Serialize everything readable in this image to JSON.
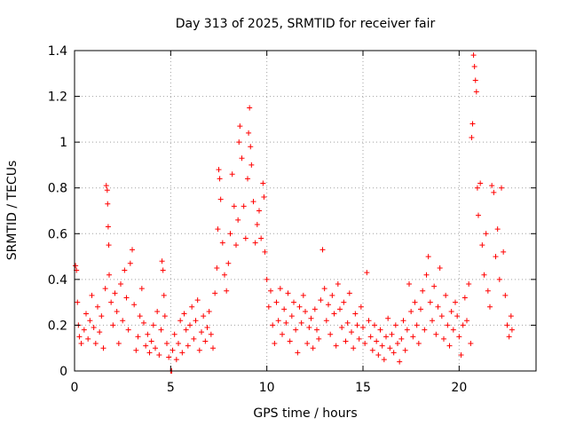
{
  "chart_data": {
    "type": "scatter",
    "title": "Day 313 of 2025, SRMTID for receiver fair",
    "xlabel": "GPS time / hours",
    "ylabel": "SRMTID / TECUs",
    "xlim": [
      0,
      24
    ],
    "ylim": [
      0,
      1.4
    ],
    "xticks": [
      0,
      5,
      10,
      15,
      20
    ],
    "xtick_labels": [
      "0",
      "5",
      "10",
      "15",
      "20"
    ],
    "yticks": [
      0,
      0.2,
      0.4,
      0.6,
      0.8,
      1,
      1.2,
      1.4
    ],
    "ytick_labels": [
      "0",
      "0.2",
      "0.4",
      "0.6",
      "0.8",
      "1",
      "1.2",
      "1.4"
    ],
    "grid": true,
    "marker": "+",
    "colors": {
      "points": "#ff0000",
      "grid": "#a0a0a0",
      "axes": "#000000"
    },
    "series": [
      {
        "name": "SRMTID",
        "points": [
          [
            0.05,
            0.46
          ],
          [
            0.1,
            0.44
          ],
          [
            0.15,
            0.3
          ],
          [
            0.2,
            0.2
          ],
          [
            0.25,
            0.15
          ],
          [
            0.35,
            0.12
          ],
          [
            0.5,
            0.18
          ],
          [
            0.6,
            0.25
          ],
          [
            0.7,
            0.14
          ],
          [
            0.8,
            0.22
          ],
          [
            0.9,
            0.33
          ],
          [
            1.0,
            0.19
          ],
          [
            1.1,
            0.12
          ],
          [
            1.2,
            0.28
          ],
          [
            1.3,
            0.17
          ],
          [
            1.4,
            0.24
          ],
          [
            1.5,
            0.1
          ],
          [
            1.6,
            0.36
          ],
          [
            1.65,
            0.81
          ],
          [
            1.7,
            0.79
          ],
          [
            1.72,
            0.73
          ],
          [
            1.75,
            0.63
          ],
          [
            1.78,
            0.55
          ],
          [
            1.8,
            0.42
          ],
          [
            1.9,
            0.3
          ],
          [
            2.0,
            0.2
          ],
          [
            2.1,
            0.34
          ],
          [
            2.2,
            0.26
          ],
          [
            2.3,
            0.12
          ],
          [
            2.4,
            0.38
          ],
          [
            2.5,
            0.22
          ],
          [
            2.6,
            0.44
          ],
          [
            2.7,
            0.32
          ],
          [
            2.8,
            0.18
          ],
          [
            2.9,
            0.47
          ],
          [
            3.0,
            0.53
          ],
          [
            3.1,
            0.29
          ],
          [
            3.2,
            0.09
          ],
          [
            3.3,
            0.15
          ],
          [
            3.4,
            0.24
          ],
          [
            3.5,
            0.36
          ],
          [
            3.6,
            0.21
          ],
          [
            3.7,
            0.11
          ],
          [
            3.8,
            0.16
          ],
          [
            3.9,
            0.08
          ],
          [
            4.0,
            0.13
          ],
          [
            4.1,
            0.2
          ],
          [
            4.2,
            0.1
          ],
          [
            4.3,
            0.26
          ],
          [
            4.4,
            0.07
          ],
          [
            4.5,
            0.18
          ],
          [
            4.55,
            0.48
          ],
          [
            4.6,
            0.44
          ],
          [
            4.65,
            0.33
          ],
          [
            4.7,
            0.24
          ],
          [
            4.8,
            0.12
          ],
          [
            4.9,
            0.06
          ],
          [
            5.0,
            0.0
          ],
          [
            5.05,
            0.0
          ],
          [
            5.1,
            0.09
          ],
          [
            5.2,
            0.16
          ],
          [
            5.3,
            0.05
          ],
          [
            5.4,
            0.12
          ],
          [
            5.5,
            0.22
          ],
          [
            5.6,
            0.08
          ],
          [
            5.7,
            0.25
          ],
          [
            5.8,
            0.18
          ],
          [
            5.9,
            0.11
          ],
          [
            6.0,
            0.2
          ],
          [
            6.1,
            0.28
          ],
          [
            6.2,
            0.14
          ],
          [
            6.3,
            0.22
          ],
          [
            6.4,
            0.31
          ],
          [
            6.5,
            0.09
          ],
          [
            6.6,
            0.17
          ],
          [
            6.7,
            0.24
          ],
          [
            6.8,
            0.13
          ],
          [
            6.9,
            0.19
          ],
          [
            7.0,
            0.26
          ],
          [
            7.1,
            0.16
          ],
          [
            7.2,
            0.1
          ],
          [
            7.3,
            0.34
          ],
          [
            7.4,
            0.45
          ],
          [
            7.45,
            0.62
          ],
          [
            7.5,
            0.88
          ],
          [
            7.55,
            0.84
          ],
          [
            7.6,
            0.75
          ],
          [
            7.7,
            0.56
          ],
          [
            7.8,
            0.42
          ],
          [
            7.9,
            0.35
          ],
          [
            8.0,
            0.47
          ],
          [
            8.1,
            0.6
          ],
          [
            8.2,
            0.86
          ],
          [
            8.3,
            0.72
          ],
          [
            8.4,
            0.55
          ],
          [
            8.5,
            0.66
          ],
          [
            8.55,
            1.0
          ],
          [
            8.6,
            1.07
          ],
          [
            8.7,
            0.93
          ],
          [
            8.8,
            0.72
          ],
          [
            8.9,
            0.58
          ],
          [
            9.0,
            0.84
          ],
          [
            9.05,
            1.04
          ],
          [
            9.1,
            1.15
          ],
          [
            9.15,
            0.98
          ],
          [
            9.2,
            0.9
          ],
          [
            9.3,
            0.74
          ],
          [
            9.4,
            0.56
          ],
          [
            9.5,
            0.64
          ],
          [
            9.6,
            0.7
          ],
          [
            9.7,
            0.58
          ],
          [
            9.8,
            0.82
          ],
          [
            9.85,
            0.76
          ],
          [
            9.9,
            0.52
          ],
          [
            10.0,
            0.4
          ],
          [
            10.1,
            0.28
          ],
          [
            10.2,
            0.35
          ],
          [
            10.3,
            0.2
          ],
          [
            10.4,
            0.12
          ],
          [
            10.5,
            0.3
          ],
          [
            10.6,
            0.22
          ],
          [
            10.7,
            0.36
          ],
          [
            10.8,
            0.16
          ],
          [
            10.9,
            0.27
          ],
          [
            11.0,
            0.21
          ],
          [
            11.1,
            0.34
          ],
          [
            11.2,
            0.13
          ],
          [
            11.3,
            0.24
          ],
          [
            11.4,
            0.3
          ],
          [
            11.5,
            0.18
          ],
          [
            11.6,
            0.08
          ],
          [
            11.7,
            0.28
          ],
          [
            11.8,
            0.21
          ],
          [
            11.9,
            0.33
          ],
          [
            12.0,
            0.26
          ],
          [
            12.1,
            0.12
          ],
          [
            12.2,
            0.19
          ],
          [
            12.3,
            0.23
          ],
          [
            12.4,
            0.1
          ],
          [
            12.5,
            0.27
          ],
          [
            12.6,
            0.18
          ],
          [
            12.7,
            0.14
          ],
          [
            12.8,
            0.31
          ],
          [
            12.9,
            0.53
          ],
          [
            13.0,
            0.36
          ],
          [
            13.1,
            0.22
          ],
          [
            13.2,
            0.29
          ],
          [
            13.3,
            0.16
          ],
          [
            13.4,
            0.33
          ],
          [
            13.5,
            0.25
          ],
          [
            13.6,
            0.11
          ],
          [
            13.7,
            0.38
          ],
          [
            13.8,
            0.27
          ],
          [
            13.9,
            0.19
          ],
          [
            14.0,
            0.3
          ],
          [
            14.1,
            0.13
          ],
          [
            14.2,
            0.21
          ],
          [
            14.3,
            0.34
          ],
          [
            14.4,
            0.17
          ],
          [
            14.5,
            0.1
          ],
          [
            14.6,
            0.25
          ],
          [
            14.7,
            0.2
          ],
          [
            14.8,
            0.14
          ],
          [
            14.9,
            0.28
          ],
          [
            15.0,
            0.19
          ],
          [
            15.1,
            0.12
          ],
          [
            15.2,
            0.43
          ],
          [
            15.3,
            0.22
          ],
          [
            15.4,
            0.15
          ],
          [
            15.5,
            0.09
          ],
          [
            15.6,
            0.2
          ],
          [
            15.7,
            0.13
          ],
          [
            15.8,
            0.07
          ],
          [
            15.9,
            0.18
          ],
          [
            16.0,
            0.11
          ],
          [
            16.1,
            0.05
          ],
          [
            16.2,
            0.15
          ],
          [
            16.3,
            0.23
          ],
          [
            16.4,
            0.1
          ],
          [
            16.5,
            0.16
          ],
          [
            16.6,
            0.08
          ],
          [
            16.7,
            0.2
          ],
          [
            16.8,
            0.12
          ],
          [
            16.9,
            0.04
          ],
          [
            17.0,
            0.14
          ],
          [
            17.1,
            0.22
          ],
          [
            17.2,
            0.09
          ],
          [
            17.3,
            0.18
          ],
          [
            17.4,
            0.38
          ],
          [
            17.5,
            0.26
          ],
          [
            17.6,
            0.15
          ],
          [
            17.7,
            0.3
          ],
          [
            17.8,
            0.2
          ],
          [
            17.9,
            0.12
          ],
          [
            18.0,
            0.27
          ],
          [
            18.1,
            0.35
          ],
          [
            18.2,
            0.18
          ],
          [
            18.3,
            0.42
          ],
          [
            18.4,
            0.5
          ],
          [
            18.5,
            0.3
          ],
          [
            18.6,
            0.22
          ],
          [
            18.7,
            0.37
          ],
          [
            18.8,
            0.16
          ],
          [
            18.9,
            0.28
          ],
          [
            19.0,
            0.45
          ],
          [
            19.1,
            0.24
          ],
          [
            19.2,
            0.14
          ],
          [
            19.3,
            0.33
          ],
          [
            19.4,
            0.2
          ],
          [
            19.5,
            0.11
          ],
          [
            19.6,
            0.26
          ],
          [
            19.7,
            0.18
          ],
          [
            19.8,
            0.3
          ],
          [
            19.9,
            0.24
          ],
          [
            20.0,
            0.15
          ],
          [
            20.1,
            0.07
          ],
          [
            20.2,
            0.2
          ],
          [
            20.3,
            0.32
          ],
          [
            20.4,
            0.22
          ],
          [
            20.5,
            0.38
          ],
          [
            20.6,
            0.12
          ],
          [
            20.65,
            1.02
          ],
          [
            20.7,
            1.08
          ],
          [
            20.75,
            1.38
          ],
          [
            20.8,
            1.33
          ],
          [
            20.85,
            1.27
          ],
          [
            20.9,
            1.22
          ],
          [
            20.95,
            0.8
          ],
          [
            21.0,
            0.68
          ],
          [
            21.1,
            0.82
          ],
          [
            21.2,
            0.55
          ],
          [
            21.3,
            0.42
          ],
          [
            21.4,
            0.6
          ],
          [
            21.5,
            0.35
          ],
          [
            21.6,
            0.28
          ],
          [
            21.7,
            0.81
          ],
          [
            21.8,
            0.78
          ],
          [
            21.9,
            0.5
          ],
          [
            22.0,
            0.62
          ],
          [
            22.1,
            0.4
          ],
          [
            22.2,
            0.8
          ],
          [
            22.3,
            0.52
          ],
          [
            22.4,
            0.33
          ],
          [
            22.5,
            0.2
          ],
          [
            22.6,
            0.15
          ],
          [
            22.7,
            0.24
          ],
          [
            22.75,
            0.18
          ]
        ]
      }
    ]
  }
}
